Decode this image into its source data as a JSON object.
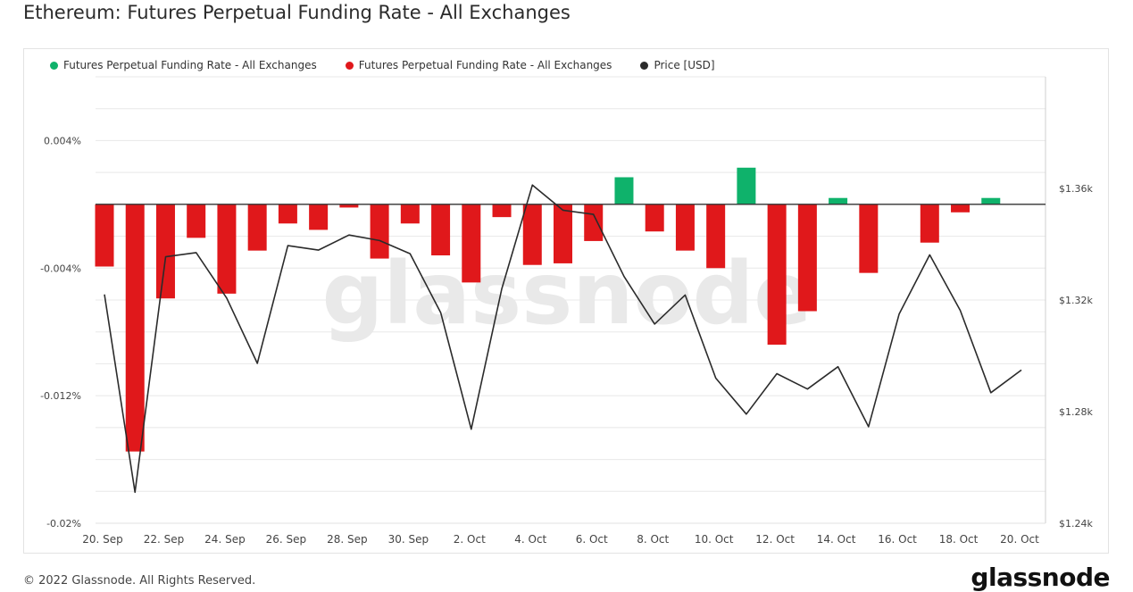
{
  "title": "Ethereum: Futures Perpetual Funding Rate - All Exchanges",
  "footer": {
    "copyright": "© 2022 Glassnode. All Rights Reserved.",
    "logo": "glassnode"
  },
  "watermark": "glassnode",
  "colors": {
    "positive": "#0fb26b",
    "negative": "#e0181b",
    "price": "#2b2b2b",
    "grid": "#e8e8e8"
  },
  "legend": [
    {
      "label": "Futures Perpetual Funding Rate - All Exchanges",
      "color": "#0fb26b"
    },
    {
      "label": "Futures Perpetual Funding Rate - All Exchanges",
      "color": "#e0181b"
    },
    {
      "label": "Price [USD]",
      "color": "#2b2b2b"
    }
  ],
  "chart_data": {
    "type": "bar",
    "x": [
      "20. Sep",
      "21. Sep",
      "22. Sep",
      "23. Sep",
      "24. Sep",
      "25. Sep",
      "26. Sep",
      "27. Sep",
      "28. Sep",
      "29. Sep",
      "30. Sep",
      "1. Oct",
      "2. Oct",
      "3. Oct",
      "4. Oct",
      "5. Oct",
      "6. Oct",
      "7. Oct",
      "8. Oct",
      "9. Oct",
      "10. Oct",
      "11. Oct",
      "12. Oct",
      "13. Oct",
      "14. Oct",
      "15. Oct",
      "16. Oct",
      "17. Oct",
      "18. Oct",
      "19. Oct",
      "20. Oct"
    ],
    "x_tick_labels": [
      "20. Sep",
      "22. Sep",
      "24. Sep",
      "26. Sep",
      "28. Sep",
      "30. Sep",
      "2. Oct",
      "4. Oct",
      "6. Oct",
      "8. Oct",
      "10. Oct",
      "12. Oct",
      "14. Oct",
      "16. Oct",
      "18. Oct",
      "20. Oct"
    ],
    "series": [
      {
        "name": "Futures Perpetual Funding Rate - All Exchanges",
        "axis": "left",
        "unit": "%",
        "values": [
          -0.0039,
          -0.0155,
          -0.0059,
          -0.0021,
          -0.0056,
          -0.0029,
          -0.0012,
          -0.0016,
          -0.0002,
          -0.0034,
          -0.0012,
          -0.0032,
          -0.0049,
          -0.0008,
          -0.0038,
          -0.0037,
          -0.0023,
          0.0017,
          -0.0017,
          -0.0029,
          -0.004,
          0.0023,
          -0.0088,
          -0.0067,
          0.0004,
          -0.0043,
          0.0,
          -0.0024,
          -0.0005,
          0.0004,
          null
        ]
      },
      {
        "name": "Price [USD]",
        "axis": "right",
        "type": "line",
        "values": [
          1.322,
          1.2511,
          1.3355,
          1.337,
          1.3207,
          1.2973,
          1.3395,
          1.3379,
          1.3433,
          1.3413,
          1.3366,
          1.3155,
          1.2737,
          1.324,
          1.3612,
          1.3522,
          1.3507,
          1.3284,
          1.3114,
          1.3218,
          1.292,
          1.2791,
          1.2936,
          1.2881,
          1.2961,
          1.2746,
          1.315,
          1.3362,
          1.3163,
          1.2868,
          1.2949
        ]
      }
    ],
    "y_left": {
      "ylim": [
        -0.02,
        0.008
      ],
      "ticks": [
        0.004,
        -0.004,
        -0.012,
        -0.02
      ],
      "tick_labels": [
        "0.004%",
        "-0.004%",
        "-0.012%",
        "-0.02%"
      ]
    },
    "y_right": {
      "ylim": [
        1.24,
        1.4
      ],
      "ticks": [
        1.36,
        1.32,
        1.28,
        1.24
      ],
      "tick_labels": [
        "$1.36k",
        "$1.32k",
        "$1.28k",
        "$1.24k"
      ]
    },
    "grid": true,
    "legend_position": "top-left"
  }
}
